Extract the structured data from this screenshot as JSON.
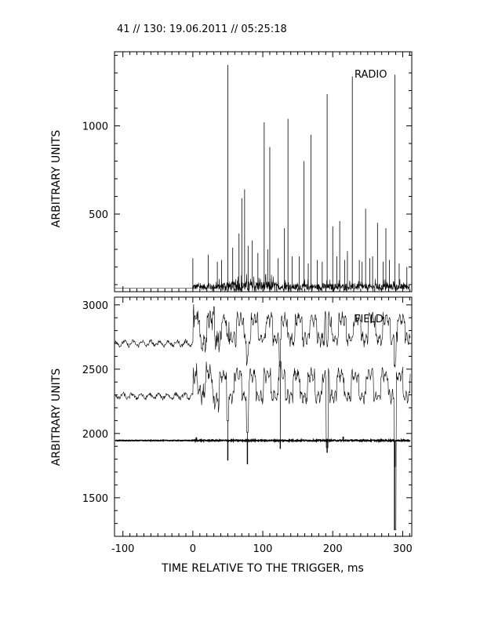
{
  "header": {
    "title": "41 // 130:   19.06.2011 // 05:25:18"
  },
  "x_axis": {
    "label": "TIME RELATIVE TO THE TRIGGER,   ms",
    "ticks": [
      "-100",
      "0",
      "100",
      "200",
      "300"
    ]
  },
  "chart_data": [
    {
      "type": "line",
      "panel": "top",
      "annotation": "RADIO",
      "ylabel": "ARBITRARY UNITS",
      "xlim": [
        -112,
        313
      ],
      "ylim": [
        60,
        1420
      ],
      "y_ticks": [
        "500",
        "1000"
      ],
      "baseline": 80,
      "noise_start": 0,
      "spikes": [
        {
          "x": 0,
          "y": 250
        },
        {
          "x": 22,
          "y": 270
        },
        {
          "x": 35,
          "y": 230
        },
        {
          "x": 41,
          "y": 240
        },
        {
          "x": 50,
          "y": 1345
        },
        {
          "x": 57,
          "y": 310
        },
        {
          "x": 66,
          "y": 390
        },
        {
          "x": 70,
          "y": 590
        },
        {
          "x": 74,
          "y": 640
        },
        {
          "x": 79,
          "y": 320
        },
        {
          "x": 85,
          "y": 350
        },
        {
          "x": 93,
          "y": 280
        },
        {
          "x": 102,
          "y": 1020
        },
        {
          "x": 107,
          "y": 300
        },
        {
          "x": 110,
          "y": 880
        },
        {
          "x": 122,
          "y": 250
        },
        {
          "x": 131,
          "y": 420
        },
        {
          "x": 136,
          "y": 1040
        },
        {
          "x": 142,
          "y": 260
        },
        {
          "x": 152,
          "y": 260
        },
        {
          "x": 159,
          "y": 800
        },
        {
          "x": 165,
          "y": 220
        },
        {
          "x": 169,
          "y": 950
        },
        {
          "x": 178,
          "y": 240
        },
        {
          "x": 185,
          "y": 230
        },
        {
          "x": 192,
          "y": 1180
        },
        {
          "x": 200,
          "y": 430
        },
        {
          "x": 206,
          "y": 260
        },
        {
          "x": 210,
          "y": 460
        },
        {
          "x": 217,
          "y": 240
        },
        {
          "x": 221,
          "y": 290
        },
        {
          "x": 228,
          "y": 1280
        },
        {
          "x": 238,
          "y": 240
        },
        {
          "x": 242,
          "y": 230
        },
        {
          "x": 247,
          "y": 530
        },
        {
          "x": 253,
          "y": 250
        },
        {
          "x": 257,
          "y": 260
        },
        {
          "x": 264,
          "y": 450
        },
        {
          "x": 272,
          "y": 230
        },
        {
          "x": 276,
          "y": 420
        },
        {
          "x": 281,
          "y": 240
        },
        {
          "x": 289,
          "y": 1290
        },
        {
          "x": 295,
          "y": 220
        },
        {
          "x": 306,
          "y": 200
        }
      ]
    },
    {
      "type": "line",
      "panel": "bottom",
      "annotation": "FIELD",
      "ylabel": "ARBITRARY UNITS",
      "xlim": [
        -112,
        313
      ],
      "ylim": [
        1200,
        3060
      ],
      "y_ticks": [
        "1500",
        "2000",
        "2500",
        "3000"
      ],
      "series": [
        {
          "id": "field-upper",
          "base_before": 2700,
          "base_after": 2810,
          "amplitude": 110,
          "start": 0
        },
        {
          "id": "field-middle",
          "base_before": 2290,
          "base_after": 2370,
          "amplitude": 120,
          "start": 0
        },
        {
          "id": "field-lower",
          "base": 1945,
          "dips": [
            {
              "x": 50,
              "y": 1790
            },
            {
              "x": 78,
              "y": 1760
            },
            {
              "x": 125,
              "y": 1880
            },
            {
              "x": 192,
              "y": 1850
            },
            {
              "x": 289,
              "y": 1740
            }
          ],
          "bumps": [
            {
              "x": 5,
              "y": 1970
            },
            {
              "x": 215,
              "y": 1975
            }
          ]
        }
      ],
      "features": [
        {
          "x": 50,
          "y": 2100
        },
        {
          "x": 78,
          "y": 2010
        },
        {
          "x": 125,
          "y": 2560
        },
        {
          "x": 192,
          "y": 1890
        },
        {
          "x": 289,
          "y": 1250
        }
      ]
    }
  ]
}
